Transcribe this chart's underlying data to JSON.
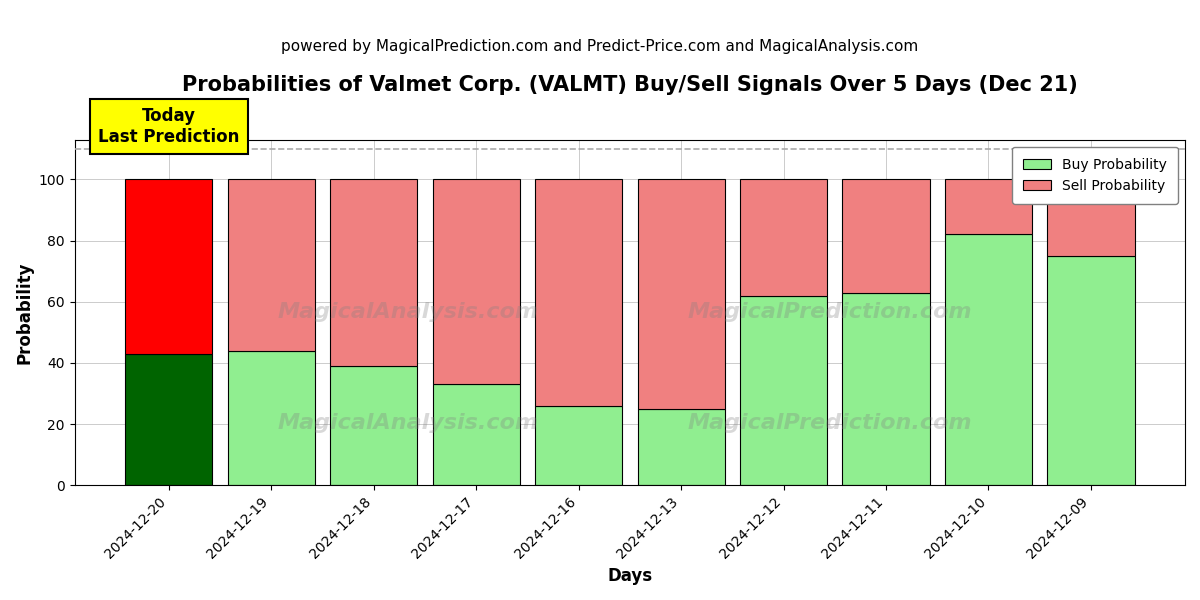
{
  "title": "Probabilities of Valmet Corp. (VALMT) Buy/Sell Signals Over 5 Days (Dec 21)",
  "subtitle": "powered by MagicalPrediction.com and Predict-Price.com and MagicalAnalysis.com",
  "xlabel": "Days",
  "ylabel": "Probability",
  "categories": [
    "2024-12-20",
    "2024-12-19",
    "2024-12-18",
    "2024-12-17",
    "2024-12-16",
    "2024-12-13",
    "2024-12-12",
    "2024-12-11",
    "2024-12-10",
    "2024-12-09"
  ],
  "buy_values": [
    43,
    44,
    39,
    33,
    26,
    25,
    62,
    63,
    82,
    75
  ],
  "sell_values": [
    57,
    56,
    61,
    67,
    74,
    75,
    38,
    37,
    18,
    25
  ],
  "today_bar_buy_color": "#006400",
  "today_bar_sell_color": "#FF0000",
  "other_bar_buy_color": "#90EE90",
  "other_bar_sell_color": "#F08080",
  "legend_buy_color": "#90EE90",
  "legend_sell_color": "#F08080",
  "today_label_bg": "#FFFF00",
  "today_label_text": "Today\nLast Prediction",
  "ylim": [
    0,
    113
  ],
  "dashed_line_y": 110,
  "bar_width": 0.85,
  "bar_edge_color": "#000000",
  "bar_linewidth": 0.8,
  "grid_color": "#aaaaaa",
  "bg_color": "#ffffff",
  "title_fontsize": 15,
  "subtitle_fontsize": 11,
  "axis_label_fontsize": 12,
  "tick_fontsize": 10
}
